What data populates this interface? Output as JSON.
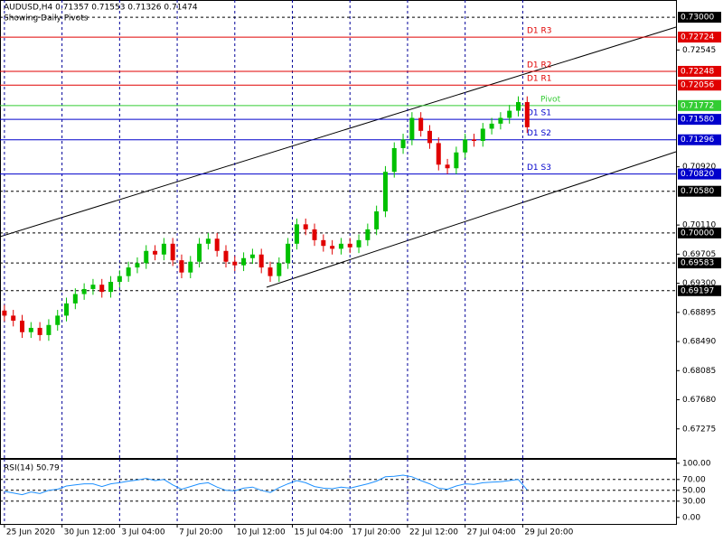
{
  "chart_data": {
    "type": "candlestick",
    "title": "AUDUSD,H4  0.71357 0.71553 0.71326 0.71474",
    "subtitle": "Showing Daily Pivots",
    "up_color": "#00c000",
    "down_color": "#e00000",
    "grid": true,
    "ylim": [
      0.6687,
      0.7324
    ],
    "yticks": [
      0.72545,
      {
        "value": 0.7092,
        "label": "0.70920"
      },
      {
        "value": 0.7011,
        "label": "0.70110"
      },
      0.69705,
      {
        "value": 0.693,
        "label": "0.69300"
      },
      0.68895,
      {
        "value": 0.6849,
        "label": "0.68490"
      },
      0.68085,
      {
        "value": 0.6768,
        "label": "0.67680"
      },
      0.67275
    ],
    "xlim": [
      -0.5,
      75.8
    ],
    "xticks": [
      {
        "value": 0,
        "label": "25 Jun 2020"
      },
      {
        "value": 6.5,
        "label": "30 Jun 12:00"
      },
      {
        "value": 13,
        "label": "3 Jul 04:00"
      },
      {
        "value": 19.5,
        "label": "7 Jul 20:00"
      },
      {
        "value": 26,
        "label": "10 Jul 12:00"
      },
      {
        "value": 32.5,
        "label": "15 Jul 04:00"
      },
      {
        "value": 39,
        "label": "17 Jul 20:00"
      },
      {
        "value": 45.5,
        "label": "22 Jul 12:00"
      },
      {
        "value": 52,
        "label": "27 Jul 04:00"
      },
      {
        "value": 58.5,
        "label": "29 Jul 20:00"
      }
    ],
    "open": [
      0.6892,
      0.6885,
      0.6878,
      0.6862,
      0.6868,
      0.6858,
      0.6872,
      0.6885,
      0.6902,
      0.6915,
      0.6922,
      0.6928,
      0.6918,
      0.6932,
      0.694,
      0.6952,
      0.6958,
      0.6975,
      0.697,
      0.6985,
      0.6962,
      0.6945,
      0.696,
      0.6985,
      0.6992,
      0.6975,
      0.696,
      0.6955,
      0.6965,
      0.697,
      0.6952,
      0.694,
      0.6958,
      0.6985,
      0.7012,
      0.7005,
      0.699,
      0.6982,
      0.6978,
      0.6985,
      0.698,
      0.699,
      0.7005,
      0.703,
      0.7085,
      0.7118,
      0.713,
      0.716,
      0.7142,
      0.7125,
      0.7095,
      0.709,
      0.7112,
      0.713,
      0.7128,
      0.7145,
      0.7152,
      0.716,
      0.717,
      0.7182
    ],
    "high": [
      0.69,
      0.6893,
      0.6886,
      0.6876,
      0.6876,
      0.688,
      0.6893,
      0.691,
      0.6923,
      0.693,
      0.6936,
      0.6936,
      0.694,
      0.6948,
      0.696,
      0.6966,
      0.6983,
      0.6983,
      0.6993,
      0.6993,
      0.697,
      0.6968,
      0.6993,
      0.7,
      0.7,
      0.6983,
      0.6968,
      0.6973,
      0.6978,
      0.6978,
      0.696,
      0.6966,
      0.6993,
      0.702,
      0.702,
      0.7013,
      0.6998,
      0.699,
      0.6993,
      0.6993,
      0.6998,
      0.7013,
      0.7038,
      0.7093,
      0.7126,
      0.7138,
      0.7168,
      0.7168,
      0.715,
      0.7133,
      0.7103,
      0.712,
      0.7138,
      0.7138,
      0.7153,
      0.716,
      0.7168,
      0.7178,
      0.719,
      0.719
    ],
    "low": [
      0.6877,
      0.687,
      0.6854,
      0.6854,
      0.685,
      0.685,
      0.6864,
      0.6877,
      0.6894,
      0.6907,
      0.6914,
      0.691,
      0.691,
      0.6924,
      0.6932,
      0.6944,
      0.695,
      0.6962,
      0.6962,
      0.6954,
      0.6937,
      0.6937,
      0.6952,
      0.6977,
      0.6967,
      0.6952,
      0.6947,
      0.6947,
      0.6957,
      0.6944,
      0.6932,
      0.6932,
      0.695,
      0.6977,
      0.6997,
      0.6982,
      0.6974,
      0.697,
      0.697,
      0.6972,
      0.6972,
      0.6982,
      0.6997,
      0.7022,
      0.7077,
      0.711,
      0.7122,
      0.7134,
      0.7117,
      0.7087,
      0.7082,
      0.7082,
      0.7104,
      0.712,
      0.712,
      0.7137,
      0.7144,
      0.7152,
      0.7162,
      0.7139
    ],
    "close": [
      0.6885,
      0.6878,
      0.6862,
      0.6868,
      0.6858,
      0.6872,
      0.6885,
      0.6902,
      0.6915,
      0.6922,
      0.6928,
      0.6918,
      0.6932,
      0.694,
      0.6952,
      0.6958,
      0.6975,
      0.697,
      0.6985,
      0.6962,
      0.6945,
      0.696,
      0.6985,
      0.6992,
      0.6975,
      0.696,
      0.6955,
      0.6965,
      0.697,
      0.6952,
      0.694,
      0.6958,
      0.6985,
      0.7012,
      0.7005,
      0.699,
      0.6982,
      0.6978,
      0.6985,
      0.698,
      0.699,
      0.7005,
      0.703,
      0.7085,
      0.7118,
      0.713,
      0.716,
      0.7142,
      0.7125,
      0.7095,
      0.709,
      0.7112,
      0.713,
      0.7128,
      0.7145,
      0.7152,
      0.716,
      0.717,
      0.7182,
      0.7147
    ],
    "levels": [
      {
        "value": 0.73,
        "label": "0.73000",
        "color": "#000000",
        "style": "dashed"
      },
      {
        "value": 0.72724,
        "label": "0.72724",
        "name": "D1 R3",
        "color": "#e00000",
        "style": "solid"
      },
      {
        "value": 0.72248,
        "label": "0.72248",
        "name": "D1 R2",
        "color": "#e00000",
        "style": "solid"
      },
      {
        "value": 0.72056,
        "label": "0.72056",
        "name": "D1 R1",
        "color": "#e00000",
        "style": "solid"
      },
      {
        "value": 0.71772,
        "label": "0.71772",
        "name": "Pivot",
        "color": "#33cc33",
        "style": "solid"
      },
      {
        "value": 0.7158,
        "label": "0.71580",
        "name": "D1 S1",
        "color": "#0000cc",
        "style": "solid"
      },
      {
        "value": 0.71296,
        "label": "0.71296",
        "name": "D1 S2",
        "color": "#0000cc",
        "style": "solid"
      },
      {
        "value": 0.7082,
        "label": "0.70820",
        "name": "D1 S3",
        "color": "#0000cc",
        "style": "solid"
      },
      {
        "value": 0.7058,
        "label": "0.70580",
        "color": "#000000",
        "style": "dashed"
      },
      {
        "value": 0.7,
        "label": "0.70000",
        "color": "#000000",
        "style": "dashed"
      },
      {
        "value": 0.69583,
        "label": "0.69583",
        "color": "#000000",
        "style": "dashed"
      },
      {
        "value": 0.69197,
        "label": "0.69197",
        "color": "#000000",
        "style": "dashed"
      }
    ],
    "rsi": {
      "title": "RSI(14) 50.79",
      "color": "#1e90ff",
      "ylim": [
        -12,
        108
      ],
      "yticks": [
        {
          "value": 100,
          "label": "100.00"
        },
        {
          "value": 70,
          "label": "70.00"
        },
        {
          "value": 50,
          "label": "50.00"
        },
        {
          "value": 30,
          "label": "30.00"
        },
        {
          "value": 0,
          "label": "0.00"
        }
      ],
      "values": [
        48,
        45,
        42,
        47,
        44,
        50,
        52,
        58,
        60,
        62,
        62,
        57,
        62,
        64,
        67,
        69,
        72,
        68,
        70,
        60,
        52,
        57,
        62,
        64,
        56,
        50,
        49,
        54,
        56,
        50,
        46,
        55,
        62,
        68,
        64,
        57,
        54,
        53,
        56,
        54,
        58,
        62,
        67,
        75,
        76,
        78,
        75,
        68,
        62,
        54,
        52,
        58,
        62,
        61,
        64,
        65,
        66,
        68,
        70,
        50.79
      ]
    }
  }
}
